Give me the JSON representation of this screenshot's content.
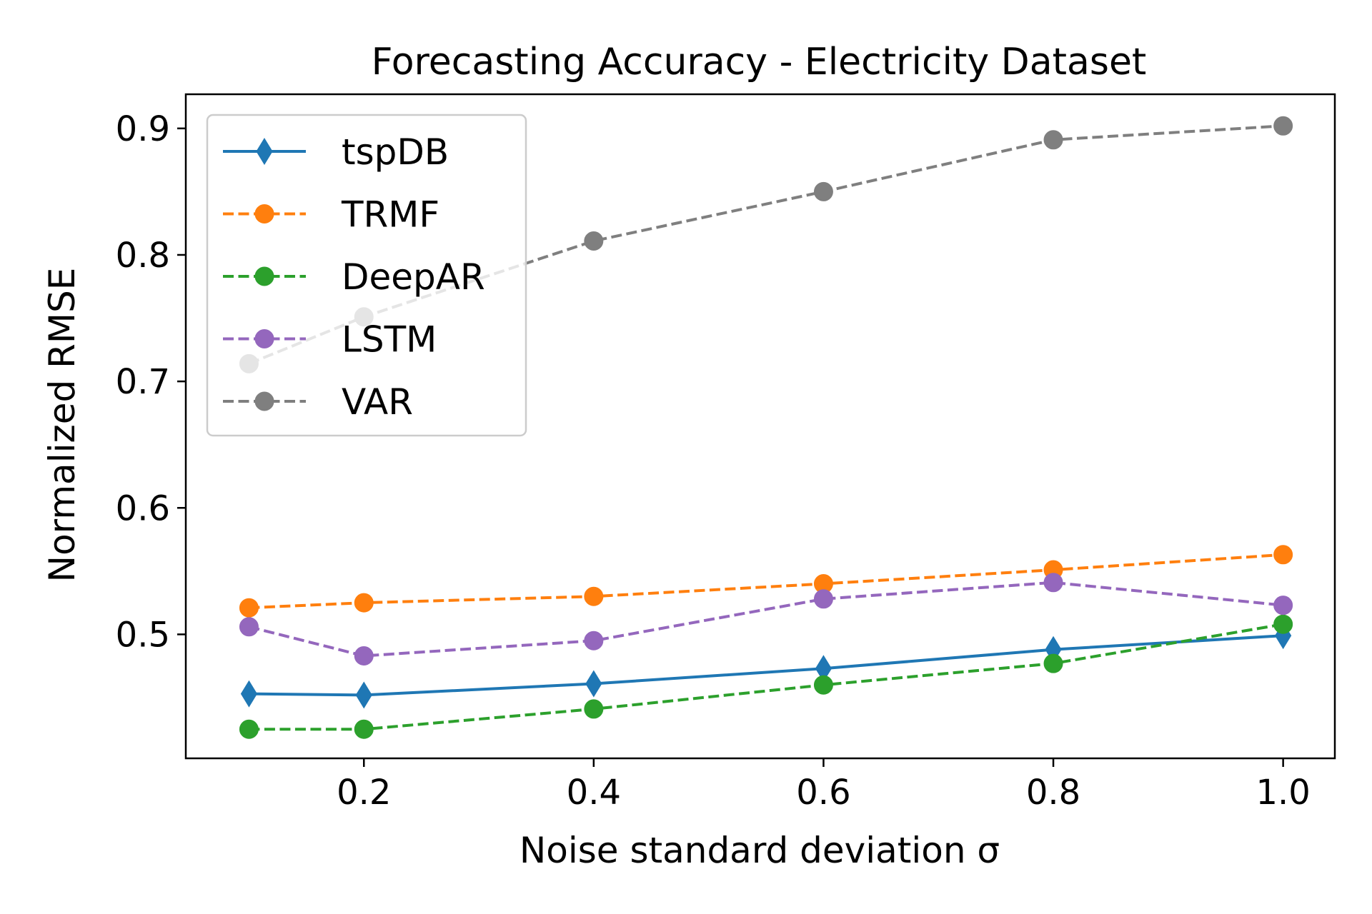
{
  "chart_data": {
    "type": "line",
    "title": "Forecasting Accuracy - Electricity Dataset",
    "xlabel": "Noise standard deviation σ",
    "ylabel": "Normalized RMSE",
    "xlim": [
      0.045,
      1.045
    ],
    "ylim": [
      0.402,
      0.927
    ],
    "x_ticks": [
      0.2,
      0.4,
      0.6,
      0.8,
      1.0
    ],
    "x_tick_labels": [
      "0.2",
      "0.4",
      "0.6",
      "0.8",
      "1.0"
    ],
    "y_ticks": [
      0.5,
      0.6,
      0.7,
      0.8,
      0.9
    ],
    "y_tick_labels": [
      "0.5",
      "0.6",
      "0.7",
      "0.8",
      "0.9"
    ],
    "grid": false,
    "legend_position": "upper-left",
    "x": [
      0.1,
      0.2,
      0.4,
      0.6,
      0.8,
      1.0
    ],
    "series": [
      {
        "name": "tspDB",
        "values": [
          0.453,
          0.452,
          0.461,
          0.473,
          0.488,
          0.499
        ],
        "color": "#1f77b4",
        "linestyle": "solid",
        "marker": "diamond"
      },
      {
        "name": "TRMF",
        "values": [
          0.521,
          0.525,
          0.53,
          0.54,
          0.551,
          0.563
        ],
        "color": "#ff7f0e",
        "linestyle": "dashed",
        "marker": "circle"
      },
      {
        "name": "DeepAR",
        "values": [
          0.425,
          0.425,
          0.441,
          0.46,
          0.477,
          0.508
        ],
        "color": "#2ca02c",
        "linestyle": "dashed",
        "marker": "circle"
      },
      {
        "name": "LSTM",
        "values": [
          0.506,
          0.483,
          0.495,
          0.528,
          0.541,
          0.523
        ],
        "color": "#9467bd",
        "linestyle": "dashed",
        "marker": "circle"
      },
      {
        "name": "VAR",
        "values": [
          0.714,
          0.751,
          0.811,
          0.85,
          0.891,
          0.902
        ],
        "color": "#7f7f7f",
        "linestyle": "dashed",
        "marker": "circle"
      }
    ]
  }
}
